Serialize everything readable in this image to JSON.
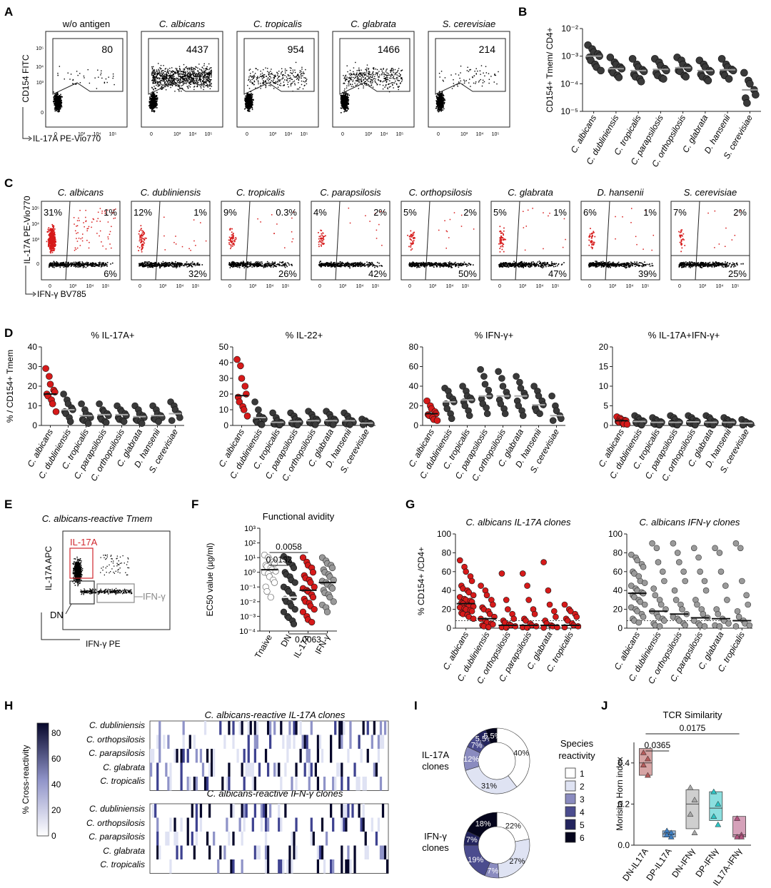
{
  "panel_letters": [
    "A",
    "B",
    "C",
    "D",
    "E",
    "F",
    "G",
    "H",
    "I",
    "J"
  ],
  "panelA": {
    "titles": [
      "w/o antigen",
      "C. albicans",
      "C. tropicalis",
      "C. glabrata",
      "S. cerevisiae"
    ],
    "italic": [
      false,
      true,
      true,
      true,
      true
    ],
    "counts": [
      "80",
      "4437",
      "954",
      "1466",
      "214"
    ],
    "ylabel": "CD154 FITC",
    "xlabel": "IL-17A PE-Vio770",
    "yticks": [
      "0",
      "10³",
      "10⁴",
      "10⁵"
    ],
    "xticks": [
      "0",
      "10³",
      "10⁴",
      "10⁵"
    ]
  },
  "panelC": {
    "titles": [
      "C. albicans",
      "C. dubliniensis",
      "C. tropicalis",
      "C. parapsilosis",
      "C. orthopsilosis",
      "C. glabrata",
      "D. hansenii",
      "S. cerevisiae"
    ],
    "tl": [
      "31%",
      "12%",
      "9%",
      "4%",
      "5%",
      "5%",
      "6%",
      "7%"
    ],
    "tr": [
      "1%",
      "1%",
      "0.3%",
      "2%",
      "2%",
      "1%",
      "1%",
      "2%"
    ],
    "br": [
      "6%",
      "32%",
      "26%",
      "42%",
      "50%",
      "47%",
      "39%",
      "25%"
    ],
    "ylabel": "IL-17A PE-Vio770",
    "xlabel": "IFN-γ BV785",
    "ticks": [
      "0",
      "10³",
      "10⁴",
      "10⁵"
    ]
  },
  "panelE": {
    "title": "C. albicans-reactive Tmem",
    "gate_il17": "IL-17A",
    "gate_ifn": "IFN-γ",
    "gate_dn": "DN",
    "ylabel": "IL-17A APC",
    "xlabel": "IFN-γ PE"
  },
  "panelH": {
    "title1": "C. albicans-reactive IL-17A clones",
    "title2": "C. albicans-reactive IFN-γ clones",
    "rows": [
      "C. dubliniensis",
      "C. orthopsilosis",
      "C. parapsilosis",
      "C. glabrata",
      "C. tropicalis"
    ],
    "scale_label": "% Cross-reactivity",
    "scale_ticks": [
      "0",
      "20",
      "40",
      "60",
      "80"
    ]
  },
  "panelI": {
    "legend_title_1": "Species",
    "legend_title_2": "reactivity",
    "legend_items": [
      "1",
      "2",
      "3",
      "4",
      "5",
      "6"
    ],
    "legend_colors": [
      "#ffffff",
      "#dfe3f3",
      "#8a8bbf",
      "#4b4c8e",
      "#23245e",
      "#05051c"
    ],
    "donuts": [
      {
        "label_1": "IL-17A",
        "label_2": "clones",
        "values": [
          40,
          31,
          12,
          7,
          5.5,
          5.5
        ],
        "labels": [
          "40%",
          "31%",
          "12%",
          "7%",
          "5.5%",
          "5.5%"
        ]
      },
      {
        "label_1": "IFN-γ",
        "label_2": "clones",
        "values": [
          22,
          27,
          7,
          19,
          7,
          18
        ],
        "labels": [
          "22%",
          "27%",
          "7%",
          "19%",
          "7%",
          "18%"
        ]
      }
    ]
  },
  "chart_data": [
    {
      "id": "B",
      "type": "scatter",
      "ylabel": "CD154+ Tmem/ CD4+",
      "yscale": "log",
      "ylim": [
        1e-05,
        0.01
      ],
      "yticks": [
        "10⁻⁵",
        "10⁻⁴",
        "10⁻³",
        "10⁻²"
      ],
      "categories": [
        "C. albicans",
        "C. dubliniensis",
        "C. tropicalis",
        "C. parapsilosis",
        "C. orthopsilosis",
        "C. glabrata",
        "D. hansenii",
        "S. cerevisiae"
      ],
      "medians": [
        0.001,
        0.00035,
        0.0003,
        0.00033,
        0.00038,
        0.0003,
        0.00032,
        6e-05
      ],
      "values": [
        [
          0.0025,
          0.0018,
          0.0014,
          0.0012,
          0.001,
          0.0009,
          0.0007,
          0.0005,
          0.0004,
          0.0003
        ],
        [
          0.0009,
          0.0006,
          0.0005,
          0.0004,
          0.00035,
          0.0003,
          0.00025,
          0.0002,
          0.00017
        ],
        [
          0.0008,
          0.0005,
          0.0004,
          0.00032,
          0.00028,
          0.00022,
          0.00018,
          0.00015,
          0.00012
        ],
        [
          0.0008,
          0.0006,
          0.00045,
          0.00035,
          0.0003,
          0.00025,
          0.0002,
          0.00016,
          0.00015
        ],
        [
          0.0009,
          0.0007,
          0.0005,
          0.0004,
          0.00036,
          0.0003,
          0.00028,
          0.0002,
          0.00018
        ],
        [
          0.0007,
          0.0005,
          0.0004,
          0.0003,
          0.00027,
          0.00022,
          0.00018,
          0.00015,
          0.00013
        ],
        [
          0.0008,
          0.0005,
          0.0004,
          0.00033,
          0.0003,
          0.00025,
          0.0002,
          0.00015
        ],
        [
          0.00025,
          0.00013,
          0.0001,
          6e-05,
          4e-05,
          3e-05,
          2e-05
        ]
      ]
    },
    {
      "id": "D1",
      "type": "scatter",
      "title": "% IL-17A+",
      "ylabel": "% / CD154+ Tmem",
      "ylim": [
        0,
        40
      ],
      "yticks": [
        0,
        10,
        20,
        30,
        40
      ],
      "categories": [
        "C. albicans",
        "C. dubliniensis",
        "C. tropicalis",
        "C. parapsilosis",
        "C. orthopsilosis",
        "C. glabrata",
        "D. hansenii",
        "S. cerevisiae"
      ],
      "medians": [
        16,
        8,
        5,
        5.5,
        5.5,
        4.5,
        5,
        6
      ],
      "values": [
        [
          29,
          25,
          21,
          18,
          17,
          16,
          15,
          13,
          11,
          7
        ],
        [
          16,
          13,
          11,
          9,
          8,
          7,
          6,
          4,
          2
        ],
        [
          11,
          8,
          6,
          5,
          4,
          3,
          2.5,
          2,
          1
        ],
        [
          11,
          8,
          7,
          6,
          5,
          4,
          3,
          2,
          1.5
        ],
        [
          10,
          8,
          7,
          6,
          5,
          4,
          3,
          2.5,
          2
        ],
        [
          10,
          8,
          6,
          5,
          4,
          3,
          2.5,
          2,
          1
        ],
        [
          10,
          8,
          6,
          5,
          4,
          3.5,
          3,
          2
        ],
        [
          12,
          10,
          8,
          6,
          4,
          2.5
        ]
      ]
    },
    {
      "id": "D2",
      "type": "scatter",
      "title": "% IL-22+",
      "ylim": [
        0,
        50
      ],
      "yticks": [
        0,
        10,
        20,
        30,
        40,
        50
      ],
      "categories": [
        "C. albicans",
        "C. dubliniensis",
        "C. tropicalis",
        "C. parapsilosis",
        "C. orthopsilosis",
        "C. glabrata",
        "D. hansenii",
        "S. cerevisiae"
      ],
      "medians": [
        19,
        5,
        2,
        2.5,
        3,
        3,
        3,
        1.5
      ],
      "values": [
        [
          42,
          38,
          30,
          25,
          20,
          18,
          15,
          12,
          10,
          6
        ],
        [
          15,
          10,
          6,
          5,
          4,
          3,
          2,
          1,
          0.5
        ],
        [
          8,
          5,
          3,
          2,
          1.5,
          1,
          0.8,
          0.5,
          0.3
        ],
        [
          8,
          6,
          4,
          3,
          2,
          1.5,
          1,
          0.5,
          0.3
        ],
        [
          9,
          7,
          5,
          4,
          3,
          2,
          1.5,
          1,
          0.5
        ],
        [
          9,
          7,
          5,
          4,
          3,
          2,
          1.5,
          1,
          0.5
        ],
        [
          8,
          6,
          4,
          3,
          2,
          1.5,
          1,
          0.5
        ],
        [
          4,
          3,
          2,
          1.5,
          1,
          0.5
        ]
      ]
    },
    {
      "id": "D3",
      "type": "scatter",
      "title": "% IFN-γ+",
      "ylim": [
        0,
        80
      ],
      "yticks": [
        0,
        20,
        40,
        60,
        80
      ],
      "categories": [
        "C. albicans",
        "C. dubliniensis",
        "C. tropicalis",
        "C. parapsilosis",
        "C. orthopsilosis",
        "C. glabrata",
        "D. hansenii",
        "S. cerevisiae"
      ],
      "medians": [
        12,
        24,
        26,
        30,
        30,
        30,
        21,
        10
      ],
      "values": [
        [
          25,
          20,
          17,
          14,
          12,
          11,
          10,
          8,
          6,
          5
        ],
        [
          38,
          35,
          30,
          27,
          24,
          22,
          17,
          12,
          7
        ],
        [
          40,
          35,
          30,
          28,
          26,
          24,
          20,
          15,
          10
        ],
        [
          57,
          50,
          42,
          36,
          30,
          27,
          22,
          18,
          12
        ],
        [
          55,
          48,
          40,
          34,
          30,
          26,
          22,
          17,
          12
        ],
        [
          50,
          44,
          38,
          33,
          30,
          25,
          20,
          15,
          10
        ],
        [
          40,
          35,
          30,
          25,
          21,
          18,
          15,
          12
        ],
        [
          30,
          20,
          15,
          10,
          7,
          5
        ]
      ]
    },
    {
      "id": "D4",
      "type": "scatter",
      "title": "% IL-17A+IFN-γ+",
      "ylim": [
        0,
        20
      ],
      "yticks": [
        0,
        5,
        10,
        15,
        20
      ],
      "categories": [
        "C. albicans",
        "C. dubliniensis",
        "C. tropicalis",
        "C. parapsilosis",
        "C. orthopsilosis",
        "C. glabrata",
        "D. hansenii",
        "S. cerevisiae"
      ],
      "medians": [
        1.2,
        1,
        0.8,
        0.8,
        0.9,
        0.8,
        0.8,
        0.6
      ],
      "values": [
        [
          2.2,
          1.8,
          1.5,
          1.3,
          1.2,
          1,
          0.8,
          0.6,
          0.4,
          0.3
        ],
        [
          2.5,
          2,
          1.5,
          1.2,
          1,
          0.8,
          0.5,
          0.3,
          0.1
        ],
        [
          2,
          1.5,
          1.2,
          1,
          0.8,
          0.5,
          0.3,
          0.2,
          0.1
        ],
        [
          2.5,
          2,
          1.5,
          1,
          0.8,
          0.6,
          0.4,
          0.2,
          0.1
        ],
        [
          2.5,
          2,
          1.5,
          1.2,
          1,
          0.7,
          0.5,
          0.3,
          0.1
        ],
        [
          2.5,
          2,
          1.5,
          1,
          0.8,
          0.5,
          0.3,
          0.2,
          0.1
        ],
        [
          2,
          1.5,
          1.2,
          1,
          0.8,
          0.5,
          0.3,
          0.1
        ],
        [
          1.5,
          1,
          0.8,
          0.5,
          0.3,
          0.1
        ]
      ]
    },
    {
      "id": "F",
      "type": "scatter",
      "title": "Functional avidity",
      "ylabel": "EC50 value (µg/ml)",
      "yscale": "log",
      "ylim": [
        0.0001,
        1000
      ],
      "yticks": [
        "10⁻⁴",
        "10⁻³",
        "10⁻²",
        "10⁻¹",
        "10⁰",
        "10¹",
        "10²",
        "10³"
      ],
      "categories": [
        "Tnaive",
        "DN",
        "IL-17A",
        "IFN-γ"
      ],
      "medians": [
        1.5,
        0.02,
        0.06,
        0.2
      ],
      "values": [
        [
          15,
          10,
          7,
          5,
          4,
          3,
          2.5,
          2,
          1.5,
          1.2,
          1,
          0.8,
          0.5,
          0.3,
          0.2,
          0.1,
          0.05,
          0.02
        ],
        [
          12,
          8,
          5,
          3,
          2,
          1,
          0.7,
          0.5,
          0.3,
          0.2,
          0.1,
          0.07,
          0.05,
          0.03,
          0.02,
          0.015,
          0.01,
          0.008,
          0.005,
          0.003,
          0.002,
          0.001,
          0.0008,
          0.0005,
          0.0003
        ],
        [
          10,
          5,
          3,
          2,
          1,
          0.6,
          0.4,
          0.3,
          0.2,
          0.1,
          0.08,
          0.06,
          0.05,
          0.03,
          0.02,
          0.015,
          0.01,
          0.008,
          0.005,
          0.003,
          0.002,
          0.001,
          0.0006,
          0.0004
        ],
        [
          10,
          6,
          4,
          3,
          2,
          1.5,
          1,
          0.7,
          0.5,
          0.3,
          0.25,
          0.2,
          0.15,
          0.1,
          0.08,
          0.06,
          0.04,
          0.03,
          0.02,
          0.01,
          0.006,
          0.004,
          0.002
        ]
      ],
      "pvalues": [
        "0.0058",
        "0.0132",
        "0.0063"
      ]
    },
    {
      "id": "G1",
      "type": "scatter",
      "title": "C. albicans IL-17A clones",
      "ylabel": "% CD154+ /CD4+",
      "ylim": [
        0,
        100
      ],
      "yticks": [
        0,
        20,
        40,
        60,
        80,
        100
      ],
      "categories": [
        "C. albicans",
        "C. dubliniensis",
        "C. orthopsilosis",
        "C. parapsilosis",
        "C. glabrata",
        "C. tropicalis"
      ],
      "medians": [
        26,
        10,
        3,
        3,
        3,
        3
      ],
      "threshold": 8,
      "values": [
        [
          72,
          65,
          60,
          55,
          50,
          45,
          42,
          40,
          38,
          35,
          33,
          31,
          30,
          29,
          28,
          27,
          26,
          25,
          24,
          23,
          22,
          21,
          20,
          19,
          18,
          16,
          15,
          14,
          12,
          10
        ],
        [
          45,
          40,
          35,
          30,
          25,
          22,
          20,
          18,
          15,
          12,
          10,
          8,
          6,
          5,
          4,
          3,
          2,
          1
        ],
        [
          58,
          30,
          20,
          15,
          10,
          8,
          6,
          4,
          3,
          2,
          1,
          0.5
        ],
        [
          58,
          45,
          30,
          20,
          15,
          10,
          8,
          5,
          3,
          2,
          1,
          0.5
        ],
        [
          70,
          40,
          25,
          18,
          12,
          8,
          5,
          3,
          2,
          1,
          0.5
        ],
        [
          25,
          20,
          18,
          15,
          12,
          10,
          8,
          5,
          3,
          2,
          1
        ]
      ]
    },
    {
      "id": "G2",
      "type": "scatter",
      "title": "C. albicans IFN-γ clones",
      "ylim": [
        0,
        100
      ],
      "yticks": [
        0,
        20,
        40,
        60,
        80,
        100
      ],
      "categories": [
        "C. albicans",
        "C. dubliniensis",
        "C. orthopsilosis",
        "C. parapsilosis",
        "C. glabrata",
        "C. tropicalis"
      ],
      "medians": [
        37,
        18,
        15,
        11,
        10,
        8
      ],
      "threshold": 8,
      "values": [
        [
          78,
          75,
          72,
          68,
          65,
          60,
          58,
          55,
          50,
          48,
          45,
          42,
          40,
          38,
          37,
          35,
          33,
          30,
          28,
          25,
          22,
          20,
          18,
          15,
          12,
          10,
          8,
          6
        ],
        [
          90,
          85,
          70,
          60,
          50,
          42,
          35,
          30,
          25,
          20,
          18,
          15,
          12,
          10,
          8,
          5,
          3,
          2
        ],
        [
          90,
          80,
          70,
          60,
          50,
          40,
          30,
          25,
          20,
          15,
          12,
          10,
          8,
          5,
          3
        ],
        [
          85,
          75,
          60,
          50,
          40,
          30,
          25,
          20,
          15,
          11,
          8,
          5,
          3,
          2
        ],
        [
          85,
          80,
          60,
          45,
          30,
          20,
          15,
          10,
          8,
          5,
          3,
          2
        ],
        [
          90,
          85,
          50,
          35,
          25,
          18,
          12,
          8,
          5,
          3,
          2
        ]
      ]
    },
    {
      "id": "J",
      "type": "box",
      "title": "TCR Similarity",
      "ylabel": "Morisita Horn index",
      "ylim": [
        0,
        0.5
      ],
      "yticks": [
        "0.0",
        "0.2",
        "0.4"
      ],
      "categories": [
        "DN-IL17A",
        "DP-IL17A",
        "DN-IFNγ",
        "DP-IFNγ",
        "IL17A-IFNγ"
      ],
      "colors": [
        "#b45a5a",
        "#3d7fc4",
        "#a8a8a8",
        "#2ec4c4",
        "#b3547f"
      ],
      "values": [
        [
          0.45,
          0.42,
          0.39,
          0.34
        ],
        [
          0.07,
          0.06,
          0.05,
          0.04
        ],
        [
          0.28,
          0.22,
          0.15,
          0.06
        ],
        [
          0.26,
          0.2,
          0.14,
          0.1
        ],
        [
          0.13,
          0.05,
          0.04,
          0.04
        ]
      ],
      "box": [
        [
          0.34,
          0.4,
          0.47
        ],
        [
          0.04,
          0.055,
          0.07
        ],
        [
          0.08,
          0.2,
          0.27
        ],
        [
          0.12,
          0.18,
          0.26
        ],
        [
          0.04,
          0.05,
          0.14
        ]
      ],
      "pvalues": [
        "0.0365",
        "0.0175"
      ]
    }
  ]
}
